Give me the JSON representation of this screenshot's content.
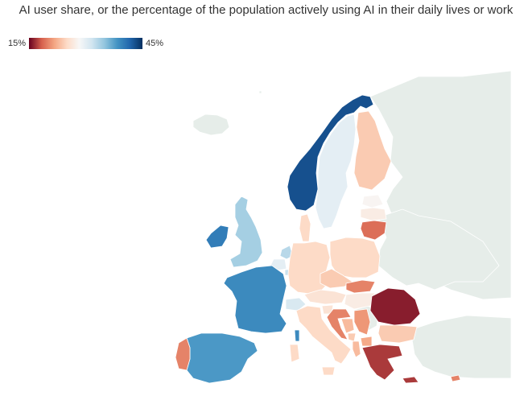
{
  "title": "AI user share, or the percentage of the population actively using AI in their daily lives or work",
  "legend": {
    "min_label": "15%",
    "max_label": "45%",
    "min_value": 15,
    "max_value": 45,
    "scale_colors": [
      "#67001f",
      "#d6604d",
      "#f4a582",
      "#fddbc7",
      "#f7f7f7",
      "#d1e5f0",
      "#92c5de",
      "#4393c3",
      "#2166ac",
      "#053061"
    ]
  },
  "map": {
    "colors": {
      "background": "#ffffff",
      "no_data_land": "#e6ede9",
      "border": "#ffffff"
    },
    "countries": [
      {
        "name": "Norway",
        "share": 43
      },
      {
        "name": "Sweden",
        "share": 30
      },
      {
        "name": "Finland",
        "share": 24
      },
      {
        "name": "Estonia",
        "share": 28
      },
      {
        "name": "Latvia",
        "share": 27
      },
      {
        "name": "Lithuania",
        "share": 19
      },
      {
        "name": "Denmark",
        "share": 25
      },
      {
        "name": "United Kingdom",
        "share": 34
      },
      {
        "name": "Ireland",
        "share": 40
      },
      {
        "name": "Netherlands",
        "share": 33
      },
      {
        "name": "Belgium",
        "share": 30
      },
      {
        "name": "Luxembourg",
        "share": 32
      },
      {
        "name": "France",
        "share": 39
      },
      {
        "name": "Germany",
        "share": 25
      },
      {
        "name": "Poland",
        "share": 25
      },
      {
        "name": "Czechia",
        "share": 24
      },
      {
        "name": "Slovakia",
        "share": 20
      },
      {
        "name": "Austria",
        "share": 26
      },
      {
        "name": "Switzerland",
        "share": 31
      },
      {
        "name": "Hungary",
        "share": 27
      },
      {
        "name": "Slovenia",
        "share": 26
      },
      {
        "name": "Croatia",
        "share": 20
      },
      {
        "name": "Serbia",
        "share": 21
      },
      {
        "name": "Bosnia and Herzegovina",
        "share": 23
      },
      {
        "name": "Montenegro",
        "share": 24
      },
      {
        "name": "North Macedonia",
        "share": 22
      },
      {
        "name": "Albania",
        "share": 23
      },
      {
        "name": "Romania",
        "share": 16
      },
      {
        "name": "Bulgaria",
        "share": 24
      },
      {
        "name": "Greece",
        "share": 17
      },
      {
        "name": "Cyprus",
        "share": 20
      },
      {
        "name": "Italy",
        "share": 25
      },
      {
        "name": "Sardinia",
        "share": 25
      },
      {
        "name": "Corsica",
        "share": 39
      },
      {
        "name": "Spain",
        "share": 38
      },
      {
        "name": "Portugal",
        "share": 20
      }
    ]
  }
}
